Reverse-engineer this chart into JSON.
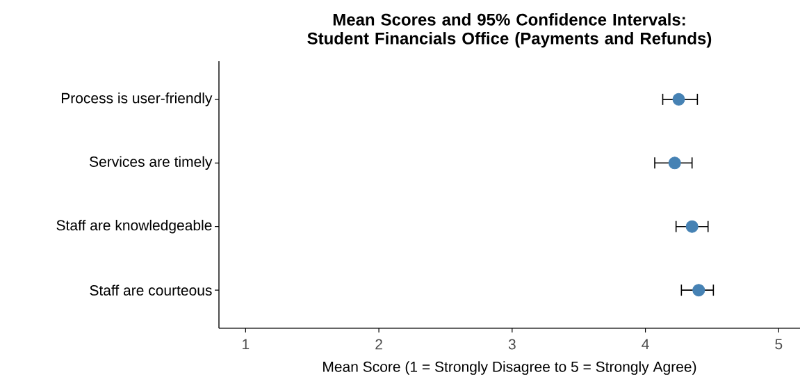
{
  "chart_data": {
    "type": "scatter",
    "orientation": "horizontal",
    "title": "Mean Scores and 95% Confidence Intervals: Student Financials Office (Payments and Refunds)",
    "xlabel": "Mean Score (1 = Strongly Disagree to 5 = Strongly Agree)",
    "categories": [
      "Process is user-friendly",
      "Services are timely",
      "Staff are knowledgeable",
      "Staff are courteous"
    ],
    "values": [
      4.25,
      4.22,
      4.35,
      4.4
    ],
    "errors": [
      [
        4.13,
        4.39
      ],
      [
        4.07,
        4.35
      ],
      [
        4.23,
        4.47
      ],
      [
        4.27,
        4.51
      ]
    ],
    "color": "#4682b4",
    "marker": "circle",
    "xlim": [
      0.8,
      5.16
    ],
    "xticks": [
      1,
      2,
      3,
      4,
      5
    ]
  }
}
